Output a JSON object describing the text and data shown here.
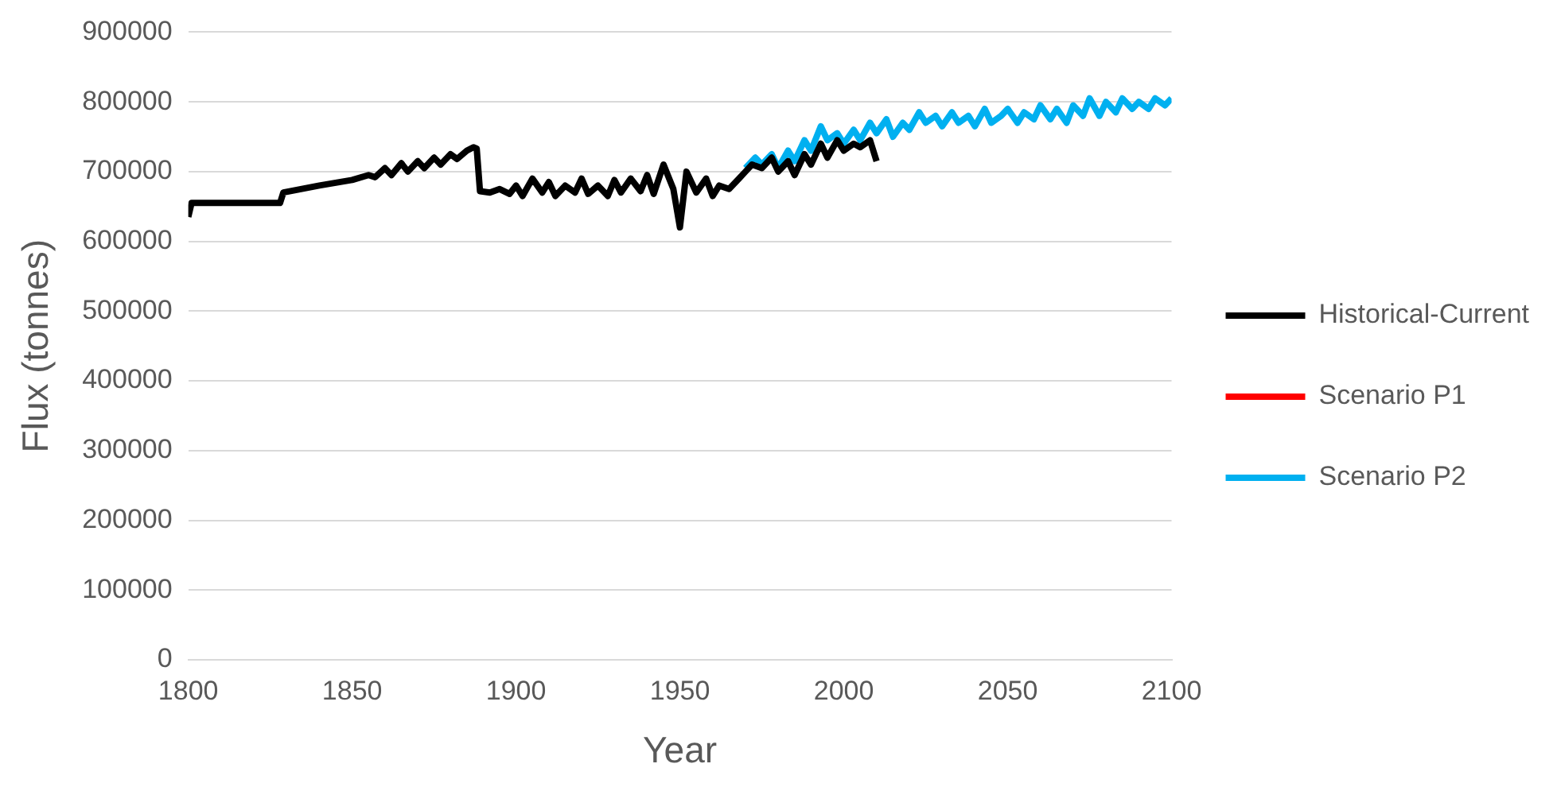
{
  "chart_data": {
    "type": "line",
    "xlabel": "Year",
    "ylabel": "Flux (tonnes)",
    "xlim": [
      1800,
      2100
    ],
    "xticks": [
      1800,
      1850,
      1900,
      1950,
      2000,
      2050,
      2100
    ],
    "ylim": [
      0,
      900000
    ],
    "yticks": [
      0,
      100000,
      200000,
      300000,
      400000,
      500000,
      600000,
      700000,
      800000,
      900000
    ],
    "grid": "y",
    "legend": "right",
    "marker": "none",
    "line_style": "solid",
    "series": [
      {
        "name": "Historical-Current",
        "color": "#000000",
        "x": [
          1800,
          1801,
          1810,
          1828,
          1829,
          1840,
          1850,
          1855,
          1857,
          1860,
          1862,
          1865,
          1867,
          1870,
          1872,
          1875,
          1877,
          1880,
          1882,
          1885,
          1887,
          1888,
          1889,
          1892,
          1895,
          1898,
          1900,
          1902,
          1905,
          1908,
          1910,
          1912,
          1915,
          1918,
          1920,
          1922,
          1925,
          1928,
          1930,
          1932,
          1935,
          1938,
          1940,
          1942,
          1945,
          1948,
          1950,
          1952,
          1955,
          1958,
          1960,
          1962,
          1965,
          1968,
          1970,
          1972,
          1975,
          1978,
          1980,
          1983,
          1985,
          1988,
          1990,
          1993,
          1995,
          1998,
          2000,
          2003,
          2005,
          2008,
          2010
        ],
        "values": [
          635000,
          655000,
          655000,
          655000,
          670000,
          680000,
          688000,
          695000,
          692000,
          705000,
          695000,
          712000,
          700000,
          715000,
          705000,
          720000,
          710000,
          725000,
          718000,
          730000,
          735000,
          733000,
          672000,
          670000,
          675000,
          668000,
          680000,
          665000,
          690000,
          670000,
          685000,
          665000,
          680000,
          670000,
          690000,
          668000,
          680000,
          665000,
          688000,
          670000,
          690000,
          672000,
          695000,
          668000,
          710000,
          675000,
          620000,
          700000,
          670000,
          690000,
          665000,
          680000,
          675000,
          690000,
          700000,
          710000,
          705000,
          720000,
          700000,
          715000,
          695000,
          725000,
          710000,
          740000,
          720000,
          745000,
          730000,
          740000,
          735000,
          745000,
          715000
        ]
      },
      {
        "name": "Scenario P1",
        "color": "#ff0000"
      },
      {
        "name": "Scenario P2",
        "color": "#00b0f0",
        "x": [
          1970,
          1973,
          1975,
          1978,
          1980,
          1983,
          1985,
          1988,
          1990,
          1993,
          1995,
          1998,
          2000,
          2003,
          2005,
          2008,
          2010,
          2013,
          2015,
          2018,
          2020,
          2023,
          2025,
          2028,
          2030,
          2033,
          2035,
          2038,
          2040,
          2043,
          2045,
          2048,
          2050,
          2053,
          2055,
          2058,
          2060,
          2063,
          2065,
          2068,
          2070,
          2073,
          2075,
          2078,
          2080,
          2083,
          2085,
          2088,
          2090,
          2093,
          2095,
          2098,
          2100
        ],
        "values": [
          705000,
          720000,
          710000,
          725000,
          705000,
          730000,
          715000,
          745000,
          730000,
          765000,
          745000,
          755000,
          740000,
          760000,
          745000,
          770000,
          755000,
          775000,
          750000,
          770000,
          760000,
          785000,
          770000,
          780000,
          765000,
          785000,
          770000,
          780000,
          765000,
          790000,
          770000,
          780000,
          790000,
          770000,
          785000,
          775000,
          795000,
          775000,
          790000,
          770000,
          795000,
          780000,
          805000,
          780000,
          800000,
          785000,
          805000,
          790000,
          800000,
          790000,
          805000,
          795000,
          805000
        ]
      }
    ]
  }
}
